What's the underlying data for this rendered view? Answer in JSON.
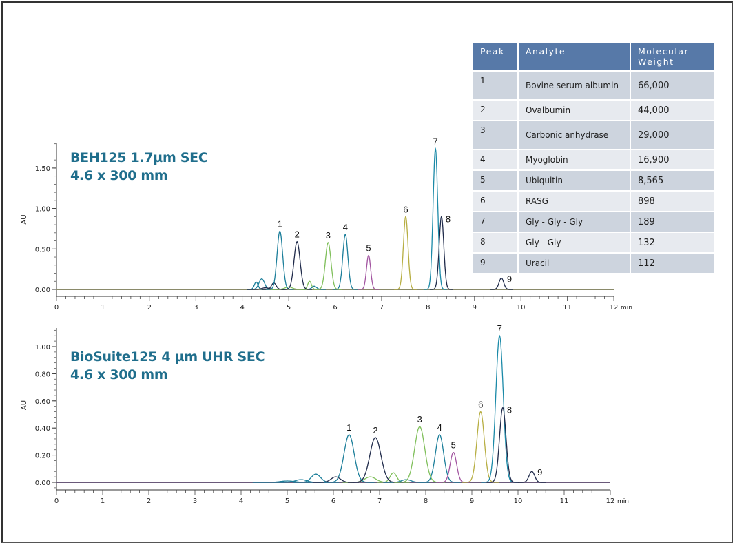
{
  "chart_data": [
    {
      "type": "line",
      "title": "BEH125 1.7µm SEC 4.6 x 300 mm",
      "title_lines": [
        "BEH125 1.7µm SEC",
        "4.6 x 300 mm"
      ],
      "xlabel": "min",
      "ylabel": "AU",
      "xlim": [
        0,
        12
      ],
      "ylim": [
        -0.08,
        1.82
      ],
      "x_ticks": [
        "0",
        "1",
        "2",
        "3",
        "4",
        "5",
        "6",
        "7",
        "8",
        "9",
        "10",
        "11",
        "12"
      ],
      "y_ticks": [
        "0.00",
        "0.50",
        "1.00",
        "1.50"
      ],
      "grid": false,
      "peaks": [
        {
          "label": "1",
          "rt": 4.81,
          "au": 0.72,
          "color": "#1b7e9a",
          "width": 0.06
        },
        {
          "label": "2",
          "rt": 5.18,
          "au": 0.59,
          "color": "#1f2a4a",
          "width": 0.065
        },
        {
          "label": "3",
          "rt": 5.85,
          "au": 0.58,
          "color": "#7fbf5a",
          "width": 0.06
        },
        {
          "label": "4",
          "rt": 6.22,
          "au": 0.68,
          "color": "#1b7e9a",
          "width": 0.055
        },
        {
          "label": "5",
          "rt": 6.72,
          "au": 0.42,
          "color": "#a254a0",
          "width": 0.045
        },
        {
          "label": "6",
          "rt": 7.52,
          "au": 0.9,
          "color": "#b7ae42",
          "width": 0.05
        },
        {
          "label": "7",
          "rt": 8.16,
          "au": 1.74,
          "color": "#1b8aa8",
          "width": 0.05
        },
        {
          "label": "8",
          "rt": 8.29,
          "au": 0.9,
          "color": "#1f2a4a",
          "width": 0.05
        },
        {
          "label": "9",
          "rt": 9.58,
          "au": 0.14,
          "color": "#1f2a4a",
          "width": 0.05
        }
      ],
      "minor_peaks": [
        {
          "rt": 4.3,
          "au": 0.09,
          "color": "#1b7e9a",
          "width": 0.04
        },
        {
          "rt": 4.42,
          "au": 0.13,
          "color": "#1b7e9a",
          "width": 0.06
        },
        {
          "rt": 4.68,
          "au": 0.08,
          "color": "#1f2a4a",
          "width": 0.05
        },
        {
          "rt": 4.5,
          "au": 0.02,
          "color": "#1f2a4a",
          "width": 0.08
        },
        {
          "rt": 5.45,
          "au": 0.1,
          "color": "#7fbf5a",
          "width": 0.04
        },
        {
          "rt": 5.55,
          "au": 0.04,
          "color": "#1b7e9a",
          "width": 0.05
        },
        {
          "rt": 5.0,
          "au": 0.03,
          "color": "#7fbf5a",
          "width": 0.08
        }
      ],
      "baseline_color": "#8a8a6a"
    },
    {
      "type": "line",
      "title": "BioSuite125 4 µm UHR SEC 4.6 x 300 mm",
      "title_lines": [
        "BioSuite125 4 µm UHR SEC",
        "4.6 x 300 mm"
      ],
      "xlabel": "min",
      "ylabel": "AU",
      "xlim": [
        0,
        12
      ],
      "ylim": [
        -0.06,
        1.13
      ],
      "x_ticks": [
        "0",
        "1",
        "2",
        "3",
        "4",
        "5",
        "6",
        "7",
        "8",
        "9",
        "10",
        "11",
        "12"
      ],
      "y_ticks": [
        "0.00",
        "0.20",
        "0.40",
        "0.60",
        "0.80",
        "1.00"
      ],
      "grid": false,
      "peaks": [
        {
          "label": "1",
          "rt": 6.34,
          "au": 0.35,
          "color": "#1b7e9a",
          "width": 0.11
        },
        {
          "label": "2",
          "rt": 6.91,
          "au": 0.33,
          "color": "#1f2a4a",
          "width": 0.12
        },
        {
          "label": "3",
          "rt": 7.87,
          "au": 0.41,
          "color": "#7fbf5a",
          "width": 0.11
        },
        {
          "label": "4",
          "rt": 8.3,
          "au": 0.35,
          "color": "#1b7e9a",
          "width": 0.09
        },
        {
          "label": "5",
          "rt": 8.6,
          "au": 0.22,
          "color": "#a254a0",
          "width": 0.07
        },
        {
          "label": "6",
          "rt": 9.19,
          "au": 0.52,
          "color": "#b7ae42",
          "width": 0.08
        },
        {
          "label": "7",
          "rt": 9.6,
          "au": 1.08,
          "color": "#1b8aa8",
          "width": 0.08
        },
        {
          "label": "8",
          "rt": 9.67,
          "au": 0.55,
          "color": "#1f2a4a",
          "width": 0.07
        },
        {
          "label": "9",
          "rt": 10.3,
          "au": 0.08,
          "color": "#1f2a4a",
          "width": 0.06
        }
      ],
      "minor_peaks": [
        {
          "rt": 5.0,
          "au": 0.01,
          "color": "#1b7e9a",
          "width": 0.15
        },
        {
          "rt": 5.3,
          "au": 0.02,
          "color": "#1b7e9a",
          "width": 0.12
        },
        {
          "rt": 5.62,
          "au": 0.06,
          "color": "#1b7e9a",
          "width": 0.1
        },
        {
          "rt": 6.05,
          "au": 0.04,
          "color": "#1f2a4a",
          "width": 0.1
        },
        {
          "rt": 6.8,
          "au": 0.04,
          "color": "#7fbf5a",
          "width": 0.12
        },
        {
          "rt": 7.3,
          "au": 0.07,
          "color": "#7fbf5a",
          "width": 0.07
        },
        {
          "rt": 7.58,
          "au": 0.02,
          "color": "#1b7e9a",
          "width": 0.1
        }
      ],
      "baseline_color": "#6a5a7a"
    }
  ],
  "table": {
    "headers": [
      "Peak",
      "Analyte",
      "Molecular Weight"
    ],
    "rows": [
      {
        "peak": "1",
        "analyte": "Bovine serum albumin",
        "mw": "66,000"
      },
      {
        "peak": "2",
        "analyte": "Ovalbumin",
        "mw": "44,000"
      },
      {
        "peak": "3",
        "analyte": "Carbonic anhydrase",
        "mw": "29,000"
      },
      {
        "peak": "4",
        "analyte": "Myoglobin",
        "mw": "16,900"
      },
      {
        "peak": "5",
        "analyte": "Ubiquitin",
        "mw": "8,565"
      },
      {
        "peak": "6",
        "analyte": "RASG",
        "mw": "898"
      },
      {
        "peak": "7",
        "analyte": "Gly - Gly - Gly",
        "mw": "189"
      },
      {
        "peak": "8",
        "analyte": "Gly - Gly",
        "mw": "132"
      },
      {
        "peak": "9",
        "analyte": "Uracil",
        "mw": "112"
      }
    ]
  },
  "colors": {
    "title": "#1f6e8c",
    "table_header": "#5779a8",
    "row_dark": "#cdd4de",
    "row_light": "#e7eaef"
  }
}
